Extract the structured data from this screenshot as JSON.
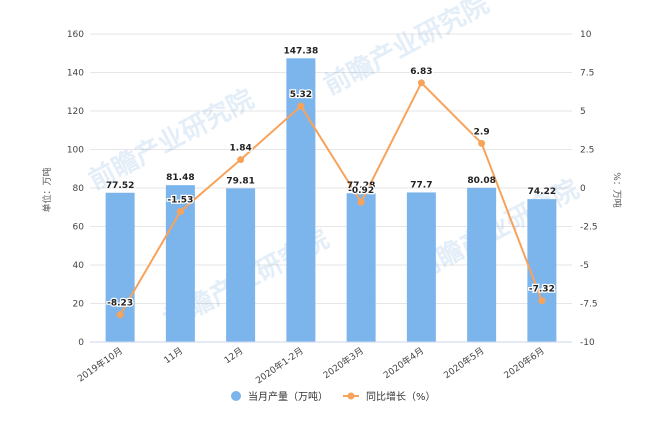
{
  "chart_data": {
    "type": "bar",
    "categories": [
      "2019年10月",
      "11月",
      "12月",
      "2020年1-2月",
      "2020年3月",
      "2020年4月",
      "2020年5月",
      "2020年6月"
    ],
    "series": [
      {
        "name": "当月产量（万吨）",
        "type": "bar",
        "axis": "left",
        "values": [
          77.52,
          81.48,
          79.81,
          147.38,
          77.28,
          77.7,
          80.08,
          74.22
        ],
        "labels": [
          "77.52",
          "81.48",
          "79.81",
          "147.38",
          "77.28",
          "77.7",
          "80.08",
          "74.22"
        ]
      },
      {
        "name": "同比增长（%）",
        "type": "line",
        "axis": "right",
        "values": [
          -8.23,
          -1.53,
          1.84,
          5.32,
          -0.92,
          6.83,
          2.9,
          -7.32
        ],
        "labels": [
          "-8.23",
          "-1.53",
          "1.84",
          "5.32",
          "-0.92",
          "6.83",
          "2.9",
          "-7.32"
        ]
      }
    ],
    "ylabel_left": "单位：万吨",
    "ylabel_right": "%：万吨",
    "ylim_left": [
      0,
      160
    ],
    "yticks_left": [
      "0",
      "20",
      "40",
      "60",
      "80",
      "100",
      "120",
      "140",
      "160"
    ],
    "ylim_right": [
      -10,
      10
    ],
    "yticks_right": [
      "-10",
      "-7.5",
      "-5",
      "-2.5",
      "0",
      "2.5",
      "5",
      "7.5",
      "10"
    ],
    "grid": true,
    "legend_position": "bottom-center",
    "colors": {
      "bar": "#7cb5ec",
      "line": "#f7a35c",
      "grid": "#e6e6e6"
    },
    "watermark": "前瞻产业研究院"
  }
}
